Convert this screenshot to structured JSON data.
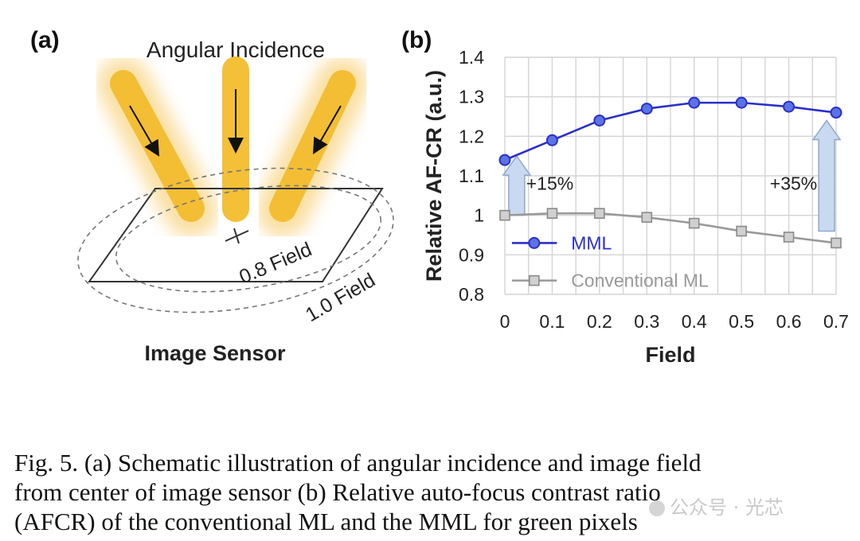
{
  "figure": {
    "panel_a": {
      "label": "(a)",
      "title": "Angular Incidence",
      "field_labels": [
        "0.8 Field",
        "1.0 Field"
      ],
      "sensor_label": "Image Sensor",
      "beam_color": "#f3bd2d"
    },
    "panel_b": {
      "label": "(b)",
      "annotations": [
        "+15%",
        "+35%"
      ]
    },
    "caption": [
      "Fig. 5. (a) Schematic illustration of angular incidence and image field",
      "from center of image sensor (b) Relative auto-focus contrast ratio",
      "(AFCR) of the conventional ML and the MML for green pixels"
    ],
    "watermark": "公众号 · 光芯"
  },
  "chart_data": {
    "type": "line",
    "title": "",
    "xlabel": "Field",
    "ylabel": "Relative AF-CR (a.u.)",
    "x": [
      0,
      0.1,
      0.2,
      0.3,
      0.4,
      0.5,
      0.6,
      0.7
    ],
    "x_tick_labels": [
      "0",
      "0.1",
      "0.2",
      "0.3",
      "0.4",
      "0.5",
      "0.6",
      "0.7"
    ],
    "ylim": [
      0.8,
      1.4
    ],
    "y_tick_labels": [
      "0.8",
      "0.9",
      "1",
      "1.1",
      "1.2",
      "1.3",
      "1.4"
    ],
    "grid": true,
    "legend_position": "bottom-left",
    "series": [
      {
        "name": "MML",
        "color": "#2b2fc9",
        "marker": "circle",
        "values": [
          1.14,
          1.19,
          1.24,
          1.27,
          1.285,
          1.285,
          1.275,
          1.26
        ]
      },
      {
        "name": "Conventional ML",
        "color": "#999999",
        "marker": "square",
        "values": [
          1.0,
          1.005,
          1.005,
          0.995,
          0.98,
          0.96,
          0.945,
          0.93
        ]
      }
    ]
  }
}
